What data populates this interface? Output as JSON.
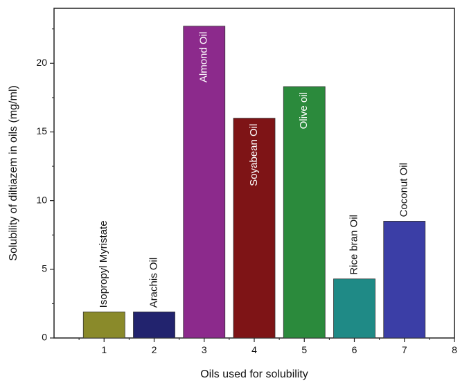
{
  "chart_data": {
    "type": "bar",
    "title": "",
    "xlabel": "Oils used for solubility",
    "ylabel": "Solubility of diltiazem in oils (mg/ml)",
    "xlim": [
      0,
      8
    ],
    "ylim": [
      0,
      24
    ],
    "x_ticks": [
      "1",
      "2",
      "3",
      "4",
      "5",
      "6",
      "7",
      "8"
    ],
    "y_ticks": [
      "0",
      "5",
      "10",
      "15",
      "20"
    ],
    "bars": [
      {
        "x": 1,
        "value": 1.9,
        "label": "Isopropyl Myristate",
        "color": "#8a8a2a",
        "label_color": "#111111",
        "label_position": "above"
      },
      {
        "x": 2,
        "value": 1.9,
        "label": "Arachis Oil",
        "color": "#22236e",
        "label_color": "#111111",
        "label_position": "above"
      },
      {
        "x": 3,
        "value": 22.7,
        "label": "Almond Oil",
        "color": "#8c2a8c",
        "label_color": "#ffffff",
        "label_position": "inside"
      },
      {
        "x": 4,
        "value": 16.0,
        "label": "Soyabean Oil",
        "color": "#7e1416",
        "label_color": "#ffffff",
        "label_position": "inside"
      },
      {
        "x": 5,
        "value": 18.3,
        "label": "Olive oil",
        "color": "#2b8a3c",
        "label_color": "#ffffff",
        "label_position": "inside"
      },
      {
        "x": 6,
        "value": 4.3,
        "label": "Rice bran Oil",
        "color": "#1f8a86",
        "label_color": "#111111",
        "label_position": "above"
      },
      {
        "x": 7,
        "value": 8.5,
        "label": "Coconut Oil",
        "color": "#3b3ea6",
        "label_color": "#111111",
        "label_position": "above"
      }
    ],
    "grid": false,
    "legend": "none"
  }
}
